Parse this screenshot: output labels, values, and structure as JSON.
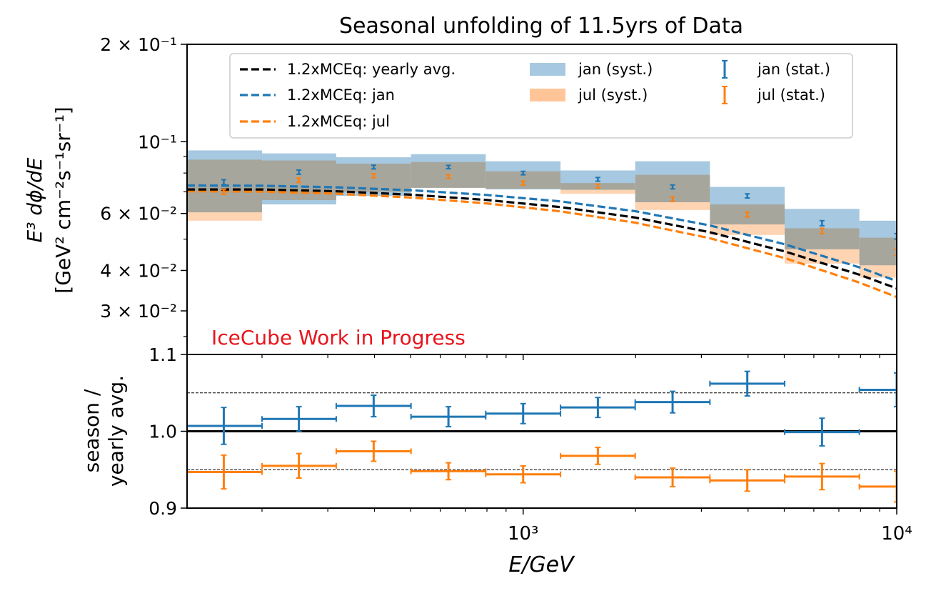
{
  "chart_data": [
    {
      "panel": "top",
      "type": "line",
      "title": "Seasonal unfolding of 11.5yrs of Data",
      "ylabel_line1": "E³ dϕ/dE",
      "ylabel_line2": "[GeV² cm⁻²s⁻¹sr⁻¹]",
      "xscale": "log",
      "yscale": "log",
      "xlim": [
        126,
        10000
      ],
      "ylim": [
        0.022,
        0.2
      ],
      "ytick_labels": [
        "2 × 10⁻¹",
        "10⁻¹",
        "6 × 10⁻²",
        "4 × 10⁻²",
        "3 × 10⁻²"
      ],
      "ytick_values": [
        0.2,
        0.1,
        0.06,
        0.04,
        0.03
      ],
      "watermark": "IceCube Work in Progress",
      "watermark_color": "#e8141c",
      "bin_edges": [
        126,
        200,
        316,
        501,
        794,
        1259,
        1995,
        3162,
        5012,
        7943,
        12589
      ],
      "series": [
        {
          "name": "1.2xMCEq: yearly avg.",
          "kind": "model",
          "color": "#000000",
          "x": [
            126,
            200,
            316,
            501,
            794,
            1259,
            1995,
            3162,
            5012,
            7943,
            10000
          ],
          "y": [
            0.0712,
            0.0712,
            0.0703,
            0.0686,
            0.0661,
            0.0628,
            0.0583,
            0.0525,
            0.0458,
            0.0388,
            0.0352
          ]
        },
        {
          "name": "1.2xMCEq: jan",
          "kind": "model",
          "color": "#1f77b4",
          "x": [
            126,
            200,
            316,
            501,
            794,
            1259,
            1995,
            3162,
            5012,
            7943,
            10000
          ],
          "y": [
            0.0732,
            0.0731,
            0.0723,
            0.0708,
            0.0685,
            0.0654,
            0.061,
            0.0551,
            0.0482,
            0.0409,
            0.0371
          ]
        },
        {
          "name": "1.2xMCEq: jul",
          "kind": "model",
          "color": "#ff7f0e",
          "x": [
            126,
            200,
            316,
            501,
            794,
            1259,
            1995,
            3162,
            5012,
            7943,
            10000
          ],
          "y": [
            0.0703,
            0.0701,
            0.0691,
            0.0672,
            0.0645,
            0.0609,
            0.0562,
            0.0503,
            0.0437,
            0.0367,
            0.0331
          ]
        },
        {
          "name": "jan (syst.)",
          "kind": "band",
          "color": "#a6c8e0",
          "lo": [
            0.0605,
            0.064,
            0.068,
            0.072,
            0.0712,
            0.071,
            0.065,
            0.0555,
            0.0465,
            0.0415
          ],
          "hi": [
            0.094,
            0.092,
            0.0895,
            0.0915,
            0.087,
            0.0815,
            0.087,
            0.0725,
            0.062,
            0.057
          ]
        },
        {
          "name": "jul (syst.)",
          "kind": "band",
          "color": "#ffc599",
          "lo": [
            0.057,
            0.066,
            0.07,
            0.072,
            0.0715,
            0.069,
            0.0615,
            0.0515,
            0.042,
            0.038
          ],
          "hi": [
            0.088,
            0.0875,
            0.0855,
            0.0865,
            0.081,
            0.0745,
            0.079,
            0.064,
            0.054,
            0.0505
          ]
        },
        {
          "name": "jan (stat.)",
          "kind": "points",
          "color": "#1f77b4",
          "x": [
            158,
            251,
            398,
            631,
            1000,
            1585,
            2512,
            3981,
            6310,
            10000
          ],
          "y": [
            0.075,
            0.0805,
            0.0835,
            0.0835,
            0.08,
            0.0765,
            0.0725,
            0.068,
            0.056,
            0.051
          ],
          "err": [
            0.0013,
            0.0012,
            0.0011,
            0.001,
            0.001,
            0.001,
            0.001,
            0.001,
            0.001,
            0.001
          ]
        },
        {
          "name": "jul (stat.)",
          "kind": "points",
          "color": "#ff7f0e",
          "x": [
            158,
            251,
            398,
            631,
            1000,
            1585,
            2512,
            3981,
            6310,
            10000
          ],
          "y": [
            0.07,
            0.076,
            0.0785,
            0.078,
            0.0745,
            0.073,
            0.0665,
            0.0595,
            0.053,
            0.0455
          ],
          "err": [
            0.0013,
            0.0012,
            0.0011,
            0.001,
            0.001,
            0.001,
            0.001,
            0.001,
            0.001,
            0.001
          ]
        }
      ],
      "legend_position": "top"
    },
    {
      "panel": "bottom",
      "type": "scatter",
      "ylabel_line1": "season /",
      "ylabel_line2": "yearly avg.",
      "xlabel": "E/GeV",
      "xscale": "log",
      "xlim": [
        126,
        10000
      ],
      "ylim": [
        0.9,
        1.1
      ],
      "ytick_labels": [
        "1.1",
        "1.0",
        "0.9"
      ],
      "ytick_values": [
        1.1,
        1.0,
        0.9
      ],
      "xtick_labels": [
        "10³",
        "10⁴"
      ],
      "xtick_values": [
        1000,
        10000
      ],
      "reference_lines": [
        1.05,
        1.0,
        0.95
      ],
      "series": [
        {
          "name": "jan",
          "color": "#1f77b4",
          "x": [
            158,
            251,
            398,
            631,
            1000,
            1585,
            2512,
            3981,
            6310,
            10000
          ],
          "y": [
            1.007,
            1.016,
            1.033,
            1.019,
            1.023,
            1.031,
            1.038,
            1.062,
            0.999,
            1.054
          ],
          "err": [
            0.024,
            0.016,
            0.014,
            0.013,
            0.013,
            0.013,
            0.014,
            0.016,
            0.018,
            0.022
          ]
        },
        {
          "name": "jul",
          "color": "#ff7f0e",
          "x": [
            158,
            251,
            398,
            631,
            1000,
            1585,
            2512,
            3981,
            6310,
            10000
          ],
          "y": [
            0.947,
            0.955,
            0.974,
            0.948,
            0.944,
            0.968,
            0.94,
            0.936,
            0.941,
            0.928
          ],
          "err": [
            0.022,
            0.016,
            0.013,
            0.011,
            0.011,
            0.011,
            0.012,
            0.014,
            0.017,
            0.02
          ]
        }
      ]
    }
  ]
}
